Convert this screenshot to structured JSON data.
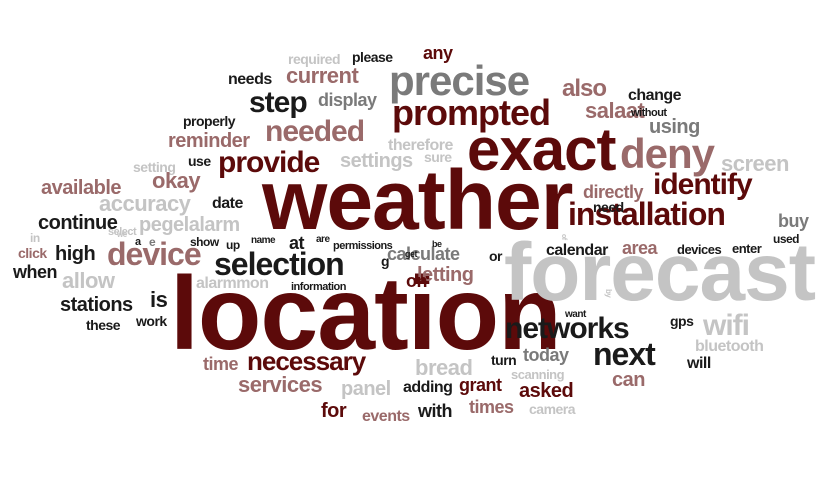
{
  "colors": {
    "dark_red": "#5c0a0a",
    "red": "#7a1e1e",
    "rose": "#9a6a6a",
    "gray": "#7a7a7a",
    "light_gray": "#c4c4c4",
    "black": "#1a1a1a"
  },
  "words": [
    "weather",
    "location",
    "forecast",
    "exact",
    "precise",
    "prompted",
    "deny",
    "device",
    "selection",
    "installation",
    "identify",
    "networks",
    "next",
    "step",
    "needed",
    "provide",
    "current",
    "also",
    "salaat",
    "change",
    "using",
    "screen",
    "wifi",
    "bluetooth",
    "gps",
    "necessary",
    "services",
    "time",
    "bread",
    "panel",
    "adding",
    "grant",
    "asked",
    "times",
    "camera",
    "scanning",
    "turn",
    "today",
    "can",
    "will",
    "want",
    "for",
    "events",
    "with",
    "calculate",
    "letting",
    "on",
    "or",
    "get",
    "be",
    "calendar",
    "area",
    "devices",
    "enter",
    "used",
    "buy",
    "need",
    "directly",
    "therefore",
    "sure",
    "settings",
    "setting",
    "use",
    "okay",
    "date",
    "available",
    "accuracy",
    "continue",
    "pegelalarm",
    "click",
    "high",
    "when",
    "allow",
    "stations",
    "these",
    "is",
    "work",
    "alarmmon",
    "information",
    "show",
    "up",
    "name",
    "at",
    "are",
    "permissions",
    "required",
    "please",
    "any",
    "needs",
    "display",
    "properly",
    "reminder",
    "without",
    "select",
    "in",
    "we",
    "a",
    "e",
    "g",
    "by",
    "of"
  ]
}
